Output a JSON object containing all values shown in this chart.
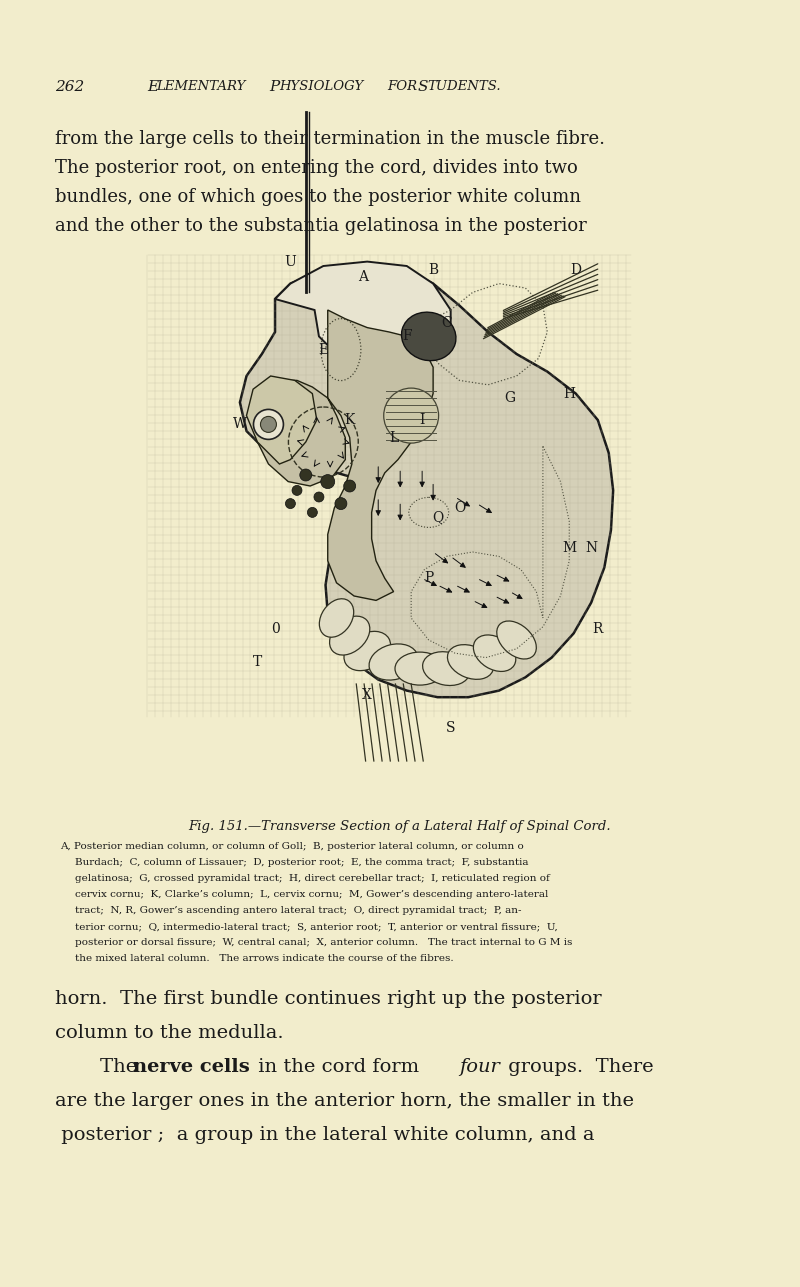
{
  "bg_color": "#f2edcc",
  "page_number": "262",
  "header": "Elementary Physiology for Students.",
  "top_text_lines": [
    "from the large cells to their termination in the muscle fibre.",
    "The posterior root, on entering the cord, divides into two",
    "bundles, one of which goes to the posterior white column",
    "and the other to the substantia gelatinosa in the posterior"
  ],
  "fig_caption_title": "Fig. 151.—Transverse Section of a Lateral Half of Spinal Cord.",
  "fig_caption_lines": [
    "A, Posterior median column, or column of Goll;  B, posterior lateral column, or column o",
    "Burdach;  C, column of Lissauer;  D, posterior root;  E, the comma tract;  F, substantia",
    "gelatinosa;  G, crossed pyramidal tract;  H, direct cerebellar tract;  I, reticulated region of",
    "cervix cornu;  K, Clarke’s column;  L, cervix cornu;  M, Gower’s descending antero-lateral",
    "tract;  N, R, Gower’s ascending antero lateral tract;  O, direct pyramidal tract;  P, an-",
    "terior cornu;  Q, intermedio-lateral tract;  S, anterior root;  T, anterior or ventral fissure;  U,",
    "posterior or dorsal fissure;  W, central canal;  X, anterior column.   The tract internal to G M is",
    "the mixed lateral column.   The arrows indicate the course of the fibres."
  ],
  "bottom_text_lines": [
    "horn.  The first bundle continues right up the posterior",
    "column to the medulla.",
    "are the larger ones in the anterior horn, the smaller in the",
    " posterior ;  a group in the lateral white column, and a"
  ],
  "text_color": "#1a1a1a"
}
